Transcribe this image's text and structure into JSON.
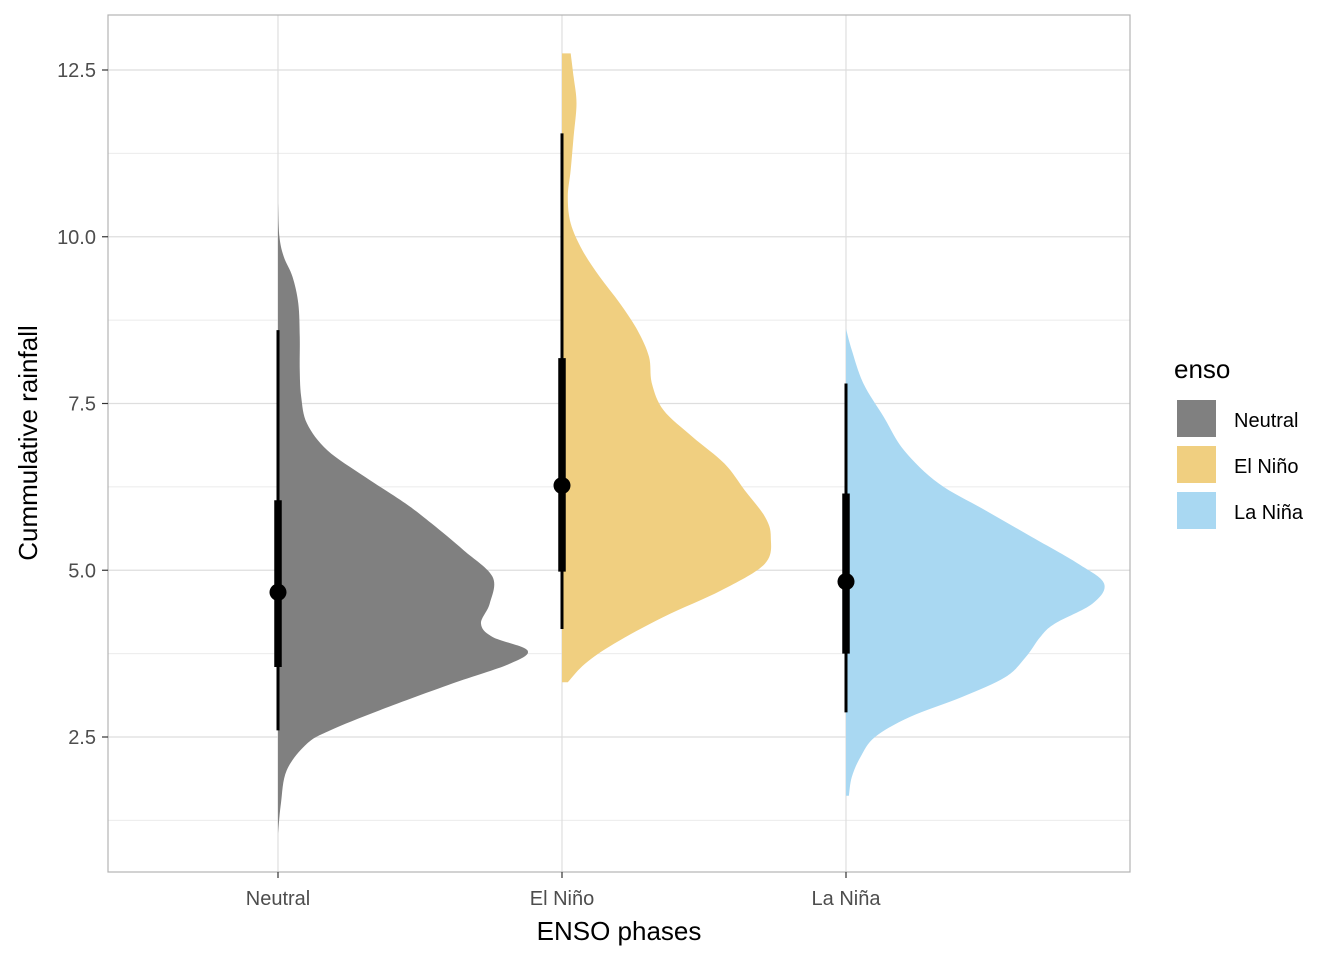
{
  "chart_data": {
    "type": "half-violin",
    "xlabel": "ENSO phases",
    "ylabel": "Cummulative rainfall",
    "categories": [
      "Neutral",
      "El Niño",
      "La Niña"
    ],
    "ylim": [
      0.8,
      13.3
    ],
    "yticks": [
      2.5,
      5.0,
      7.5,
      10.0,
      12.5
    ],
    "ytick_labels": [
      "2.5",
      "5.0",
      "7.5",
      "10.0",
      "12.5"
    ],
    "grid": true,
    "legend": {
      "title": "enso",
      "position": "right",
      "entries": [
        "Neutral",
        "El Niño",
        "La Niña"
      ]
    },
    "colors": {
      "Neutral": "#808080",
      "El Niño": "#F0CF80",
      "La Niña": "#A9D8F2"
    },
    "series": [
      {
        "category": "Neutral",
        "median": 4.67,
        "interval_66": [
          3.55,
          6.05
        ],
        "interval_95": [
          2.6,
          8.6
        ],
        "density_profile": [
          [
            1.05,
            0.0
          ],
          [
            1.5,
            0.01
          ],
          [
            2.0,
            0.03
          ],
          [
            2.4,
            0.1
          ],
          [
            2.6,
            0.18
          ],
          [
            2.9,
            0.35
          ],
          [
            3.3,
            0.6
          ],
          [
            3.6,
            0.8
          ],
          [
            3.8,
            0.86
          ],
          [
            4.0,
            0.74
          ],
          [
            4.2,
            0.7
          ],
          [
            4.5,
            0.73
          ],
          [
            4.9,
            0.74
          ],
          [
            5.3,
            0.64
          ],
          [
            5.7,
            0.53
          ],
          [
            6.0,
            0.44
          ],
          [
            6.4,
            0.3
          ],
          [
            6.8,
            0.17
          ],
          [
            7.2,
            0.1
          ],
          [
            7.6,
            0.08
          ],
          [
            8.0,
            0.075
          ],
          [
            8.5,
            0.075
          ],
          [
            9.0,
            0.07
          ],
          [
            9.4,
            0.05
          ],
          [
            9.7,
            0.02
          ],
          [
            10.0,
            0.005
          ],
          [
            10.5,
            0.0
          ]
        ]
      },
      {
        "category": "El Niño",
        "median": 6.27,
        "interval_66": [
          4.98,
          8.18
        ],
        "interval_95": [
          4.12,
          11.55
        ],
        "density_profile": [
          [
            3.32,
            0.02
          ],
          [
            3.6,
            0.08
          ],
          [
            3.9,
            0.18
          ],
          [
            4.3,
            0.35
          ],
          [
            4.7,
            0.55
          ],
          [
            5.1,
            0.7
          ],
          [
            5.5,
            0.72
          ],
          [
            5.8,
            0.7
          ],
          [
            6.2,
            0.63
          ],
          [
            6.6,
            0.56
          ],
          [
            7.0,
            0.45
          ],
          [
            7.4,
            0.35
          ],
          [
            7.8,
            0.31
          ],
          [
            8.2,
            0.3
          ],
          [
            8.6,
            0.26
          ],
          [
            9.0,
            0.2
          ],
          [
            9.4,
            0.13
          ],
          [
            9.8,
            0.07
          ],
          [
            10.2,
            0.03
          ],
          [
            10.6,
            0.02
          ],
          [
            11.0,
            0.03
          ],
          [
            11.5,
            0.04
          ],
          [
            12.0,
            0.05
          ],
          [
            12.4,
            0.04
          ],
          [
            12.75,
            0.03
          ]
        ]
      },
      {
        "category": "La Niña",
        "median": 4.83,
        "interval_66": [
          3.75,
          6.15
        ],
        "interval_95": [
          2.87,
          7.8
        ],
        "density_profile": [
          [
            1.62,
            0.01
          ],
          [
            1.9,
            0.02
          ],
          [
            2.2,
            0.05
          ],
          [
            2.5,
            0.1
          ],
          [
            2.8,
            0.22
          ],
          [
            3.1,
            0.4
          ],
          [
            3.4,
            0.55
          ],
          [
            3.7,
            0.62
          ],
          [
            4.0,
            0.67
          ],
          [
            4.2,
            0.72
          ],
          [
            4.5,
            0.85
          ],
          [
            4.8,
            0.89
          ],
          [
            5.1,
            0.8
          ],
          [
            5.5,
            0.64
          ],
          [
            5.9,
            0.48
          ],
          [
            6.3,
            0.32
          ],
          [
            6.8,
            0.2
          ],
          [
            7.3,
            0.13
          ],
          [
            7.8,
            0.06
          ],
          [
            8.3,
            0.02
          ],
          [
            8.62,
            0.0
          ]
        ]
      }
    ]
  }
}
